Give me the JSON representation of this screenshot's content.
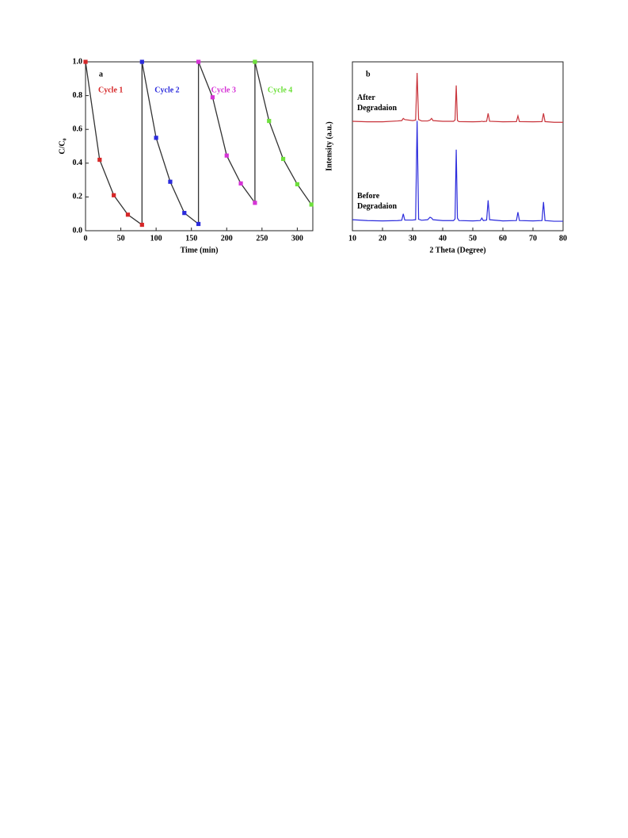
{
  "chart_data": [
    {
      "type": "line",
      "panel": "a",
      "xlabel": "Time (min)",
      "ylabel": "C/C₀",
      "xlim": [
        0,
        322
      ],
      "xticks": [
        0,
        50,
        100,
        150,
        200,
        250,
        300
      ],
      "ylim": [
        0,
        1
      ],
      "yticks": [
        {
          "value": 0,
          "label": "0.0"
        },
        0.2,
        0.4,
        0.6,
        0.8,
        {
          "value": 1,
          "label": "1.0"
        }
      ],
      "line_color": "#333333",
      "markers": true,
      "connect_series": true,
      "series": [
        {
          "name": "Cycle 1",
          "color": "#d62728",
          "x": [
            0,
            20,
            40,
            60,
            80
          ],
          "values": [
            1.0,
            0.42,
            0.21,
            0.095,
            0.035
          ]
        },
        {
          "name": "Cycle 2",
          "color": "#2b2bdc",
          "x": [
            80,
            100,
            120,
            140,
            160
          ],
          "values": [
            1.0,
            0.55,
            0.29,
            0.105,
            0.04
          ]
        },
        {
          "name": "Cycle 3",
          "color": "#d633d6",
          "x": [
            160,
            180,
            200,
            220,
            240
          ],
          "values": [
            1.0,
            0.79,
            0.445,
            0.28,
            0.165
          ]
        },
        {
          "name": "Cycle 4",
          "color": "#6ee03c",
          "x": [
            240,
            260,
            280,
            300,
            320
          ],
          "values": [
            1.0,
            0.65,
            0.425,
            0.275,
            0.155
          ]
        }
      ]
    },
    {
      "type": "line",
      "panel": "b",
      "xlabel": "2 Theta (Degree)",
      "ylabel": "Intensity (a.u.)",
      "xlim": [
        10,
        80
      ],
      "xticks": [
        10,
        20,
        30,
        40,
        50,
        60,
        70,
        80
      ],
      "ylim": [
        0,
        100
      ],
      "markers": false,
      "connect_series": false,
      "x": [
        10,
        15,
        20,
        25,
        26.4,
        26.9,
        27.4,
        30,
        31.0,
        31.5,
        32.0,
        33,
        35,
        35.8,
        36.3,
        36.8,
        40,
        43.6,
        44.1,
        44.5,
        44.9,
        45.4,
        50,
        52.5,
        53,
        53.5,
        54.6,
        55.1,
        55.6,
        60,
        64.5,
        65.0,
        65.5,
        70,
        73.0,
        73.5,
        74.0,
        77,
        80
      ],
      "series": [
        {
          "name": "After Degradaion",
          "color": "#c8333a",
          "values": [
            64.8,
            64.5,
            64.5,
            65,
            65.2,
            66.5,
            65.8,
            65.2,
            65.5,
            93.4,
            65.8,
            65,
            65,
            65.5,
            66.5,
            65.2,
            64.8,
            64.8,
            65.5,
            86,
            65.3,
            64.6,
            64.5,
            64.6,
            64.8,
            64.6,
            64.8,
            69.5,
            64.8,
            64.5,
            64.6,
            68,
            64.6,
            64.5,
            64.6,
            69.5,
            64.6,
            64.2,
            64.2
          ]
        },
        {
          "name": "Before Degradaion",
          "color": "#2b2bdc",
          "values": [
            6.5,
            6,
            5.8,
            6,
            6.2,
            10,
            6.3,
            6.3,
            6.5,
            65,
            6.8,
            6.2,
            6.5,
            8,
            7.5,
            6.5,
            6,
            6,
            7,
            48,
            7.5,
            6,
            5.8,
            6,
            7.5,
            6,
            6.3,
            18,
            6.5,
            5.8,
            6,
            11,
            6,
            5.8,
            6,
            17,
            6,
            5.6,
            5.6
          ]
        }
      ]
    }
  ]
}
